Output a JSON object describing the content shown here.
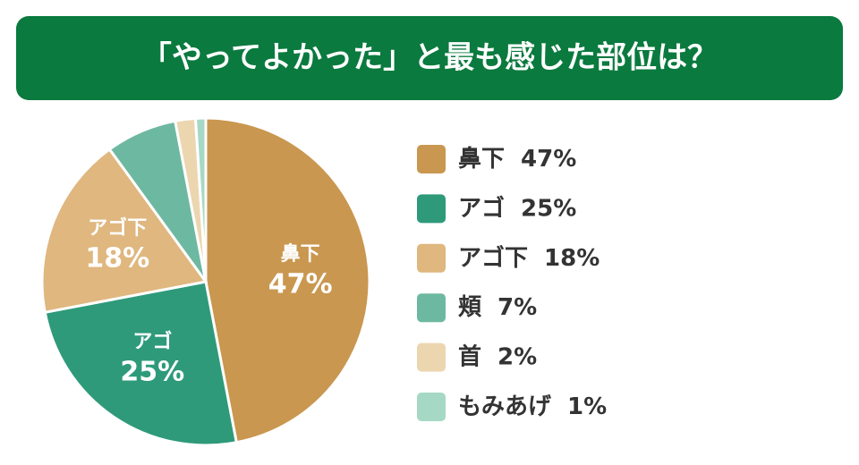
{
  "chart_data": {
    "type": "pie",
    "title": "「やってよかった」と最も感じた部位は？",
    "categories": [
      "鼻下",
      "アゴ",
      "アゴ下",
      "頬",
      "首",
      "もみあげ"
    ],
    "values": [
      47,
      25,
      18,
      7,
      2,
      1
    ],
    "value_labels": [
      "47%",
      "25%",
      "18%",
      "7%",
      "2%",
      "1%"
    ],
    "colors": [
      "#c9974f",
      "#2e9a7a",
      "#dfb77f",
      "#6db8a1",
      "#ecd6b0",
      "#a6d8c6"
    ],
    "legend": "right"
  }
}
